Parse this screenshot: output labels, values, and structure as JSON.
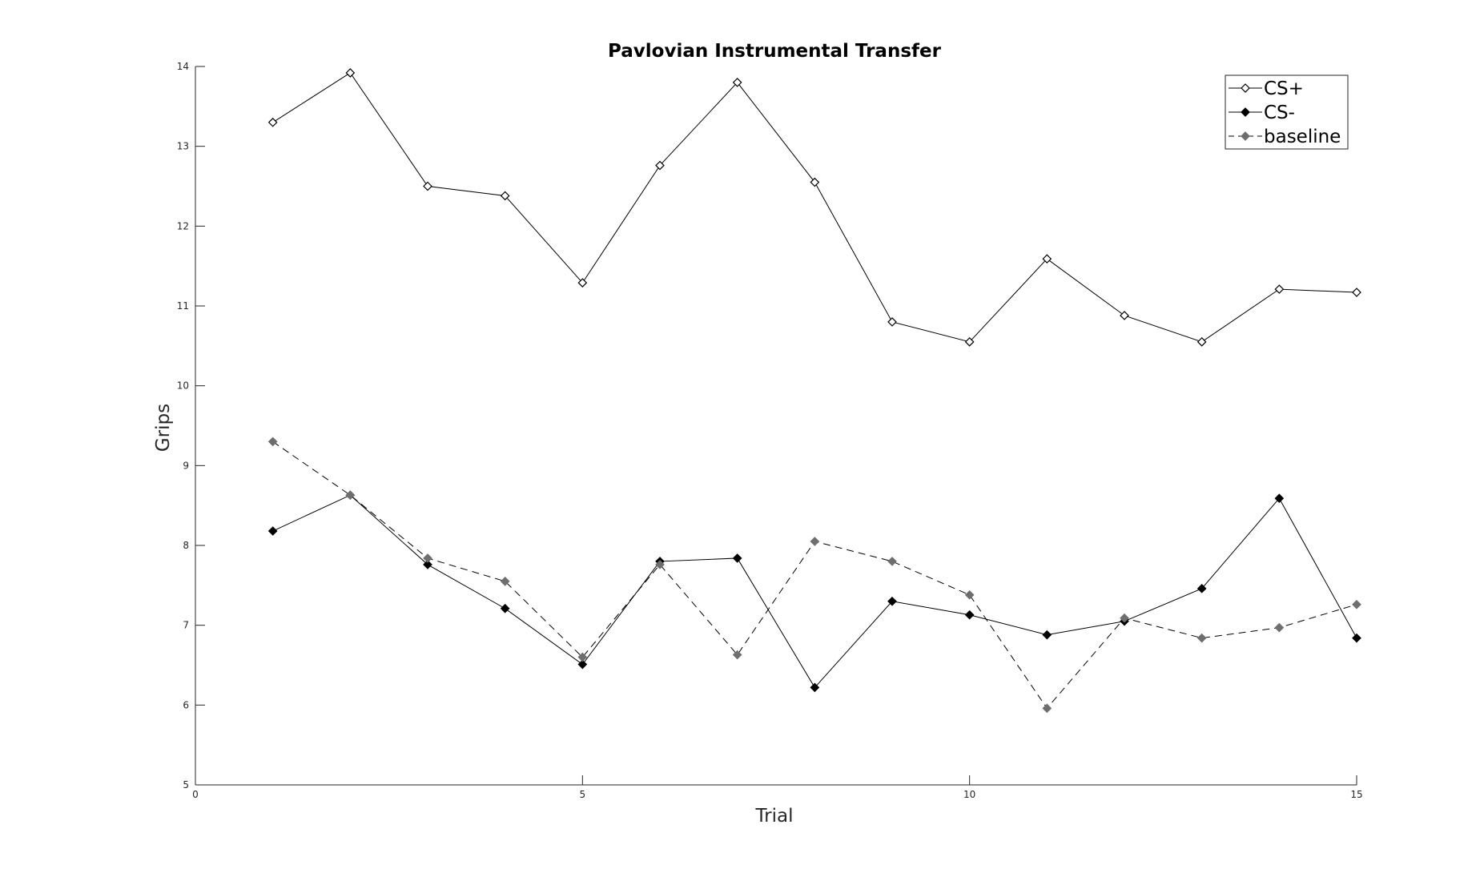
{
  "chart_data": {
    "type": "line",
    "title": "Pavlovian Instrumental Transfer",
    "xlabel": "Trial",
    "ylabel": "Grips",
    "xlim": [
      0,
      15
    ],
    "ylim": [
      5,
      14
    ],
    "xticks": [
      0,
      5,
      10,
      15
    ],
    "yticks": [
      5,
      6,
      7,
      8,
      9,
      10,
      11,
      12,
      13,
      14
    ],
    "grid": false,
    "legend_position": "top-right",
    "x": [
      1,
      2,
      3,
      4,
      5,
      6,
      7,
      8,
      9,
      10,
      11,
      12,
      13,
      14,
      15
    ],
    "series": [
      {
        "name": "CS+",
        "values": [
          13.3,
          13.92,
          12.5,
          12.38,
          11.29,
          12.76,
          13.8,
          12.55,
          10.8,
          10.55,
          11.59,
          10.88,
          10.55,
          11.21,
          11.17
        ],
        "line_color": "#000000",
        "line_style": "solid",
        "marker": "open-diamond",
        "marker_color": "#000000"
      },
      {
        "name": "CS-",
        "values": [
          8.18,
          8.63,
          7.76,
          7.21,
          6.51,
          7.8,
          7.84,
          6.22,
          7.3,
          7.13,
          6.88,
          7.05,
          7.46,
          8.59,
          6.84
        ],
        "line_color": "#000000",
        "line_style": "solid",
        "marker": "filled-diamond",
        "marker_color": "#000000"
      },
      {
        "name": "baseline",
        "values": [
          9.3,
          8.63,
          7.84,
          7.55,
          6.6,
          7.76,
          6.63,
          8.05,
          7.8,
          7.38,
          5.96,
          7.09,
          6.84,
          6.97,
          7.26
        ],
        "line_color": "#000000",
        "line_style": "dashed",
        "marker": "filled-diamond",
        "marker_color": "#6e6e6e"
      }
    ]
  }
}
